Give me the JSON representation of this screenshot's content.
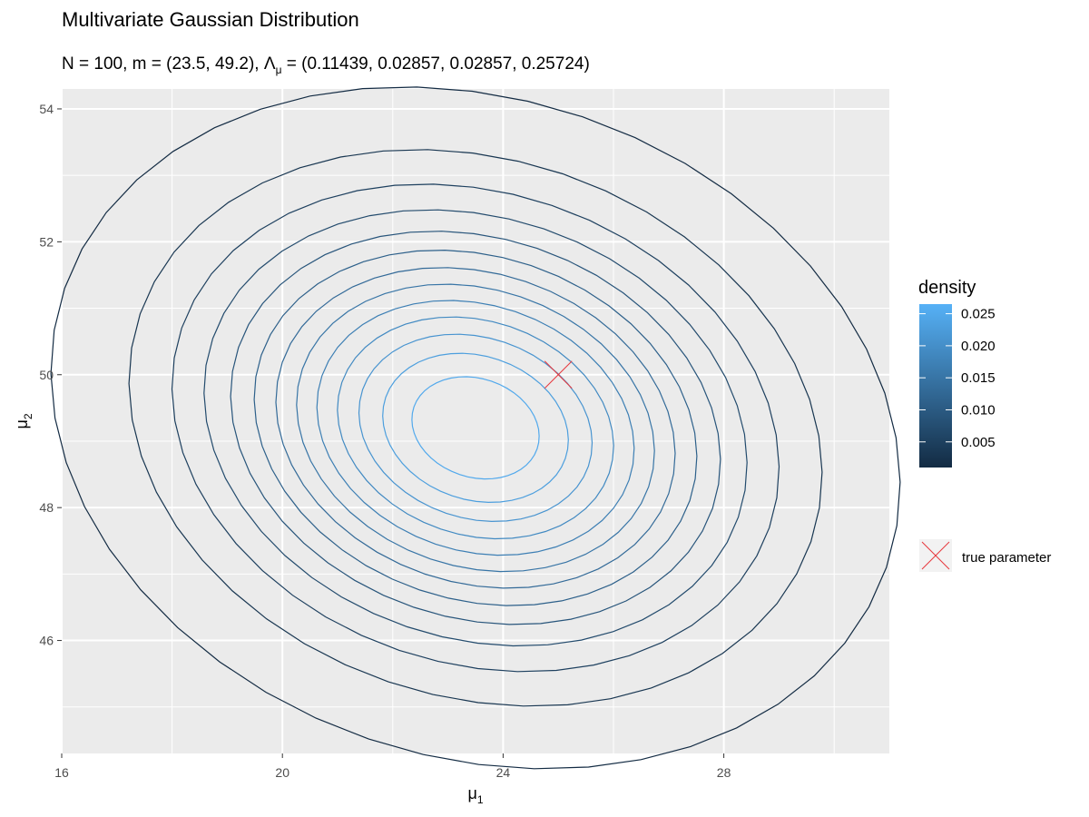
{
  "chart_data": {
    "type": "contour",
    "title": "Multivariate Gaussian Distribution",
    "subtitle": {
      "prefix": "N = 100, ",
      "m_symbol": "m",
      "m_value": " = (23.5, 49.2), ",
      "lambda_symbol": "Λ",
      "lambda_sub": "μ",
      "lambda_value": " = (0.11439, 0.02857, 0.02857, 0.25724)"
    },
    "x_label": {
      "main": "μ",
      "sub": "1"
    },
    "y_label": {
      "main": "μ",
      "sub": "2"
    },
    "xlim": [
      16,
      31
    ],
    "ylim": [
      44.3,
      54.3
    ],
    "x_ticks": [
      16,
      20,
      24,
      28
    ],
    "y_ticks": [
      46,
      48,
      50,
      52,
      54
    ],
    "grid": true,
    "panel_background": "#EBEBEB",
    "estimated_mean": [
      23.5,
      49.2
    ],
    "precision": [
      0.11439,
      0.02857,
      0.02857,
      0.25724
    ],
    "contour_levels": [
      0.001,
      0.003,
      0.005,
      0.007,
      0.009,
      0.011,
      0.013,
      0.015,
      0.017,
      0.019,
      0.021,
      0.023,
      0.025
    ],
    "true_parameter": {
      "x": 25,
      "y": 50,
      "color": "#E8383D",
      "label": "true parameter"
    },
    "legend": {
      "title": "density",
      "ticks": [
        "0.005",
        "0.010",
        "0.015",
        "0.020",
        "0.025"
      ],
      "tick_values": [
        0.005,
        0.01,
        0.015,
        0.02,
        0.025
      ],
      "range": [
        0.001,
        0.0265
      ],
      "color_low": "#132B43",
      "color_high": "#56B1F7",
      "position": "right"
    }
  }
}
